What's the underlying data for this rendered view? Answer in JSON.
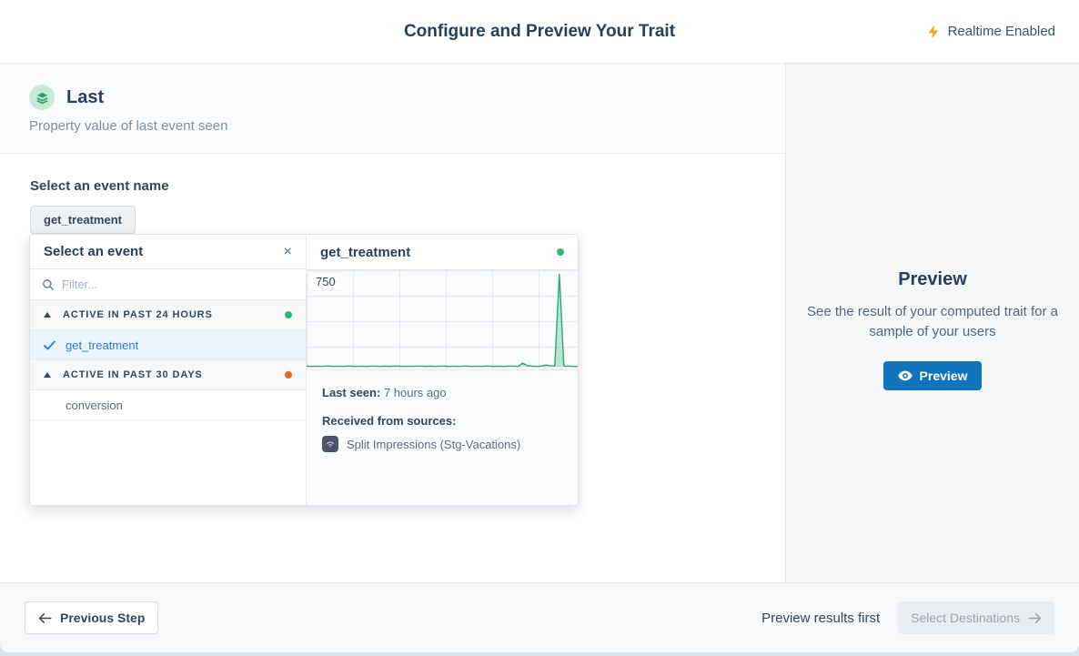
{
  "header": {
    "title": "Configure and Preview Your Trait",
    "realtime_label": "Realtime Enabled",
    "bolt_color": "#f6a723"
  },
  "trait": {
    "name": "Last",
    "description": "Property value of last event seen",
    "icon_bg": "#c7ead6",
    "icon_color": "#2e9e68"
  },
  "event_select": {
    "label": "Select an event name",
    "selected_chip": "get_treatment",
    "panel": {
      "title": "Select an event",
      "close_glyph": "×",
      "filter_placeholder": "Filter...",
      "groups": [
        {
          "label": "ACTIVE IN PAST 24 HOURS",
          "dot_color": "#36b37e",
          "items": [
            {
              "label": "get_treatment",
              "selected": true
            }
          ]
        },
        {
          "label": "ACTIVE IN PAST 30 DAYS",
          "dot_color": "#e2662d",
          "items": [
            {
              "label": "conversion",
              "selected": false
            }
          ]
        }
      ]
    },
    "event_detail": {
      "title": "get_treatment",
      "status_dot_color": "#36b37e",
      "last_seen_label": "Last seen:",
      "last_seen_value": "7 hours ago",
      "sources_label": "Received from sources:",
      "source_name": "Split Impressions (Stg-Vacations)"
    }
  },
  "chart_data": {
    "type": "area",
    "title": "get_treatment event volume sparkline",
    "ylim": [
      0,
      750
    ],
    "y_tick_label": "750",
    "grid": true,
    "line_color": "#2fa971",
    "fill_color": "rgba(54,179,126,0.32)",
    "values": [
      4,
      3,
      4,
      3,
      4,
      4,
      3,
      4,
      3,
      4,
      4,
      3,
      4,
      3,
      4,
      4,
      3,
      4,
      3,
      4,
      4,
      3,
      4,
      3,
      4,
      4,
      3,
      4,
      3,
      4,
      4,
      3,
      4,
      3,
      4,
      4,
      3,
      4,
      3,
      4,
      4,
      3,
      4,
      3,
      4,
      4,
      3,
      28,
      10,
      4,
      3,
      4,
      14,
      8,
      4,
      750,
      6,
      4,
      3,
      4
    ]
  },
  "preview_panel": {
    "title": "Preview",
    "description": "See the result of your computed trait for a sample of your users",
    "button_label": "Preview",
    "button_color": "#1173bc"
  },
  "footer": {
    "previous_label": "Previous Step",
    "hint": "Preview results first",
    "next_label": "Select Destinations"
  }
}
